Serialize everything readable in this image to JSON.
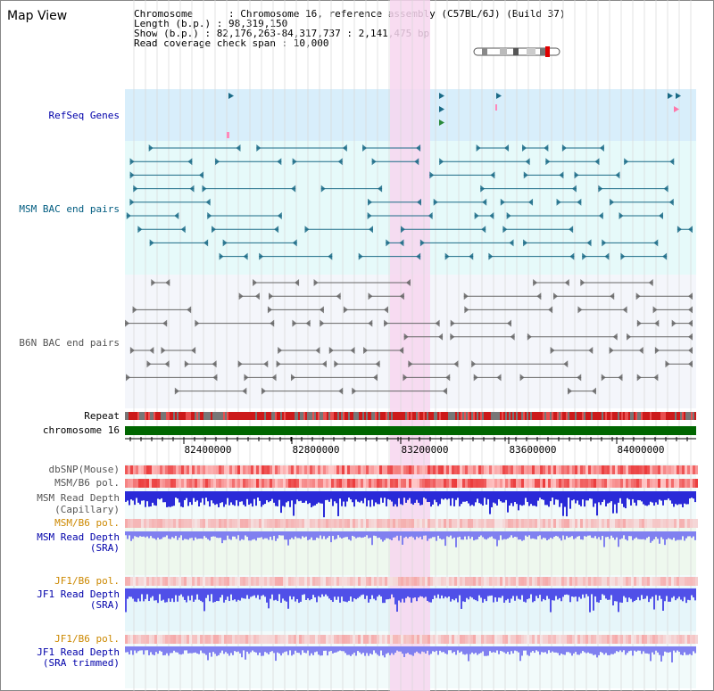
{
  "title": "Map View",
  "info": {
    "chromosome": "Chromosome      : Chromosome 16, reference assembly (C57BL/6J) (Build 37)",
    "length": "Length (b.p.) : 98,319,150",
    "show": "Show (b.p.) : 82,176,263-84,317,737 : 2,141,475 bp",
    "span": "Read coverage check span : 10,000"
  },
  "tracks": {
    "refseq": "RefSeq Genes",
    "msm_bac": "MSM BAC end pairs",
    "b6n_bac": "B6N BAC end pairs",
    "repeat": "Repeat",
    "chromosome": "chromosome 16",
    "dbsnp": "dbSNP(Mouse)",
    "msm_pol1": "MSM/B6 pol.",
    "msm_depth_cap_1": "MSM Read Depth",
    "msm_depth_cap_2": "(Capillary)",
    "msm_pol2": "MSM/B6 pol.",
    "msm_depth_sra_1": "MSM Read Depth",
    "msm_depth_sra_2": "(SRA)",
    "jf1_pol1": "JF1/B6 pol.",
    "jf1_depth_sra_1": "JF1 Read Depth",
    "jf1_depth_sra_2": "(SRA)",
    "jf1_pol2": "JF1/B6 pol.",
    "jf1_depth_trim_1": "JF1 Read Depth",
    "jf1_depth_trim_2": "(SRA trimmed)"
  },
  "axis_ticks": [
    "82400000",
    "82800000",
    "83200000",
    "83600000",
    "84000000"
  ],
  "colors": {
    "refseq_bg": "#d8eefb",
    "bac_bg": "#e6fafa",
    "b6n_bg": "#f4f6fb",
    "highlight": "#f7d6ef",
    "chromosome": "#006600",
    "msm_line": "#1a6a86",
    "b6n_line": "#666666",
    "depth_blue": "#2a2ad8",
    "depth_light": "#8080f0"
  }
}
